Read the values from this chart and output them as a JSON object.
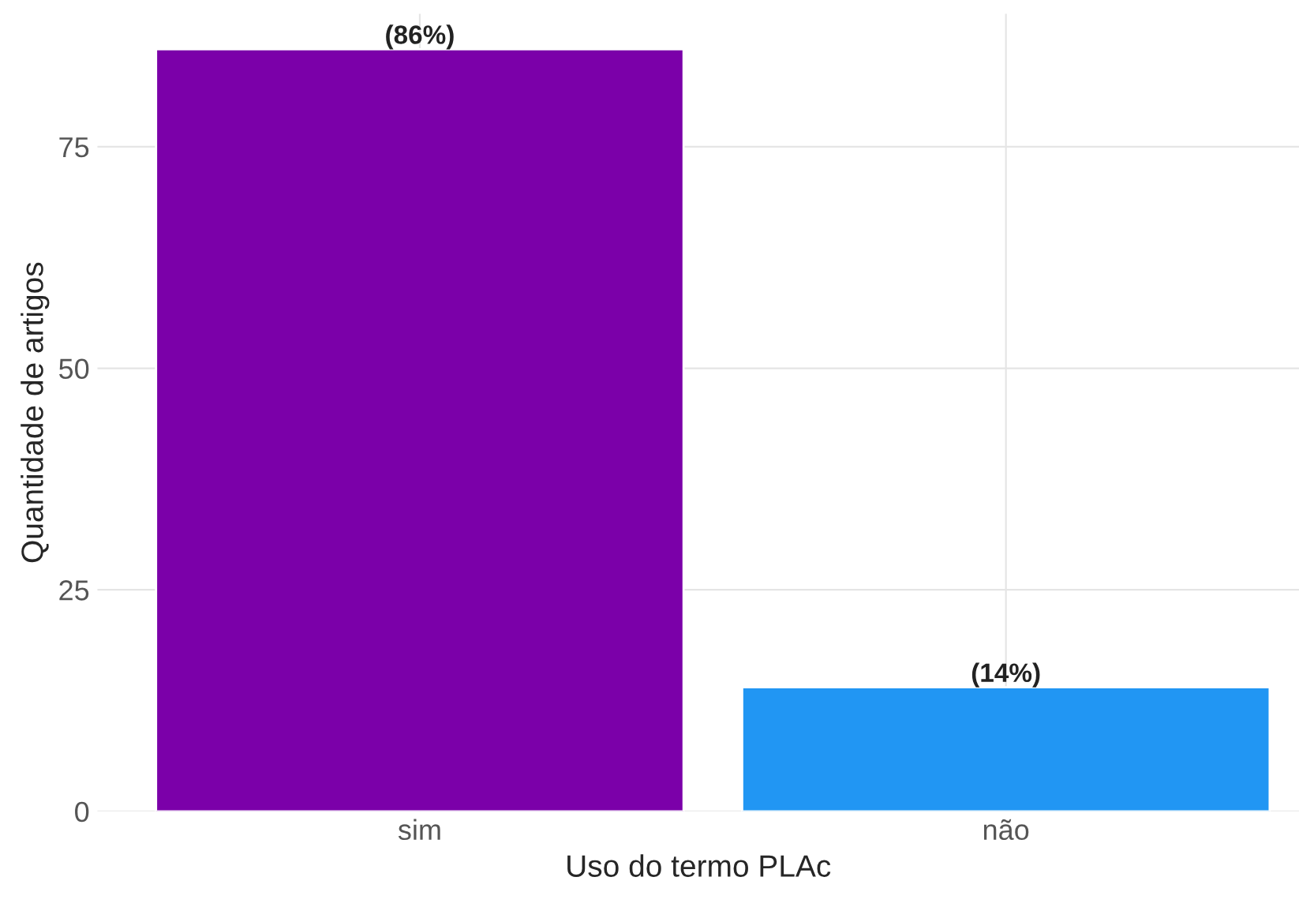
{
  "chart_data": {
    "type": "bar",
    "xlabel": "Uso do termo PLAc",
    "ylabel": "Quantidade de artigos",
    "categories": [
      "sim",
      "não"
    ],
    "values": [
      86,
      14
    ],
    "colors": [
      "#7b00a9",
      "#2196f3"
    ],
    "value_labels": [
      "(86%)",
      "(14%)"
    ],
    "ylim": [
      0,
      90
    ],
    "yticks": [
      0,
      25,
      50,
      75
    ],
    "grid": true
  }
}
